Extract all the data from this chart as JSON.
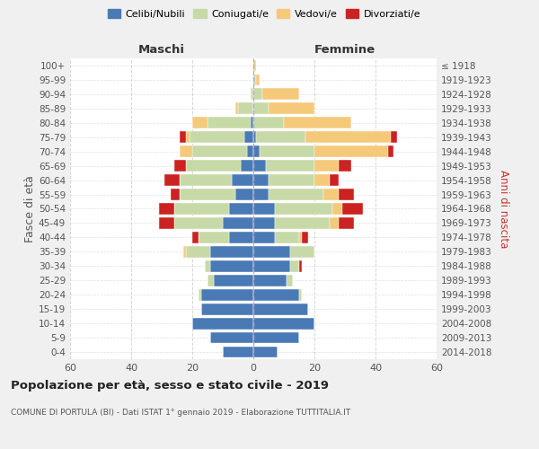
{
  "age_groups": [
    "0-4",
    "5-9",
    "10-14",
    "15-19",
    "20-24",
    "25-29",
    "30-34",
    "35-39",
    "40-44",
    "45-49",
    "50-54",
    "55-59",
    "60-64",
    "65-69",
    "70-74",
    "75-79",
    "80-84",
    "85-89",
    "90-94",
    "95-99",
    "100+"
  ],
  "birth_years": [
    "2014-2018",
    "2009-2013",
    "2004-2008",
    "1999-2003",
    "1994-1998",
    "1989-1993",
    "1984-1988",
    "1979-1983",
    "1974-1978",
    "1969-1973",
    "1964-1968",
    "1959-1963",
    "1954-1958",
    "1949-1953",
    "1944-1948",
    "1939-1943",
    "1934-1938",
    "1929-1933",
    "1924-1928",
    "1919-1923",
    "≤ 1918"
  ],
  "colors": {
    "celibi": "#4a7ab5",
    "coniugati": "#c8d9a8",
    "vedovi": "#f5c97a",
    "divorziati": "#cc2222"
  },
  "maschi": {
    "celibi": [
      10,
      14,
      20,
      17,
      17,
      13,
      14,
      14,
      8,
      10,
      8,
      6,
      7,
      4,
      2,
      3,
      1,
      0,
      0,
      0,
      0
    ],
    "coniugati": [
      0,
      0,
      0,
      0,
      1,
      2,
      2,
      8,
      10,
      16,
      18,
      18,
      17,
      18,
      18,
      18,
      14,
      5,
      1,
      0,
      0
    ],
    "vedovi": [
      0,
      0,
      0,
      0,
      0,
      0,
      0,
      1,
      0,
      0,
      0,
      0,
      0,
      0,
      4,
      1,
      5,
      1,
      0,
      0,
      0
    ],
    "divorziati": [
      0,
      0,
      0,
      0,
      0,
      0,
      0,
      0,
      2,
      5,
      5,
      3,
      5,
      4,
      0,
      2,
      0,
      0,
      0,
      0,
      0
    ]
  },
  "femmine": {
    "celibi": [
      8,
      15,
      20,
      18,
      15,
      11,
      12,
      12,
      7,
      7,
      7,
      5,
      5,
      4,
      2,
      1,
      0,
      0,
      0,
      0,
      0
    ],
    "coniugati": [
      0,
      0,
      0,
      0,
      1,
      2,
      3,
      8,
      8,
      18,
      19,
      18,
      15,
      16,
      18,
      16,
      10,
      5,
      3,
      1,
      0
    ],
    "vedovi": [
      0,
      0,
      0,
      0,
      0,
      0,
      0,
      0,
      1,
      3,
      3,
      5,
      5,
      8,
      24,
      28,
      22,
      15,
      12,
      1,
      1
    ],
    "divorziati": [
      0,
      0,
      0,
      0,
      0,
      0,
      1,
      0,
      2,
      5,
      7,
      5,
      3,
      4,
      2,
      2,
      0,
      0,
      0,
      0,
      0
    ]
  },
  "title": "Popolazione per età, sesso e stato civile - 2019",
  "subtitle": "COMUNE DI PORTULA (BI) - Dati ISTAT 1° gennaio 2019 - Elaborazione TUTTITALIA.IT",
  "xlabel_left": "Maschi",
  "xlabel_right": "Femmine",
  "ylabel_left": "Fasce di età",
  "ylabel_right": "Anni di nascita",
  "xlim": 60,
  "bg_color": "#f0f0f0",
  "plot_bg": "#ffffff",
  "grid_color": "#cccccc"
}
